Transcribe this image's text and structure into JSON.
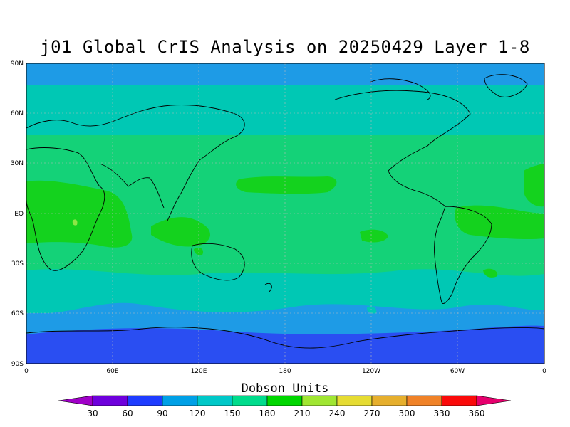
{
  "title": "j01 Global CrIS Analysis on 20250429 Layer 1-8",
  "colorbar": {
    "title": "Dobson Units",
    "levels": [
      "30",
      "60",
      "90",
      "120",
      "150",
      "180",
      "210",
      "240",
      "270",
      "300",
      "330",
      "360"
    ],
    "colors": [
      "#a000c8",
      "#6e00dc",
      "#1e3cff",
      "#00a0e6",
      "#00c8c8",
      "#00dc8c",
      "#00d700",
      "#a0e632",
      "#e6dc32",
      "#e6af2d",
      "#f08228",
      "#fa0a0a",
      "#e6006e"
    ]
  },
  "axes": {
    "lat_ticks": [
      "90N",
      "60N",
      "30N",
      "EQ",
      "30S",
      "60S",
      "90S"
    ],
    "lon_ticks": [
      "0",
      "60E",
      "120E",
      "180",
      "120W",
      "60W",
      "0"
    ]
  },
  "field": {
    "palette": {
      "polar_south": "#2a4ef2",
      "deep_blue": "#1e9be6",
      "sky_blue": "#00c0d4",
      "cyan": "#00c8b4",
      "teal_green": "#14d278",
      "green": "#14d21e",
      "light_green": "#8ce646"
    }
  }
}
